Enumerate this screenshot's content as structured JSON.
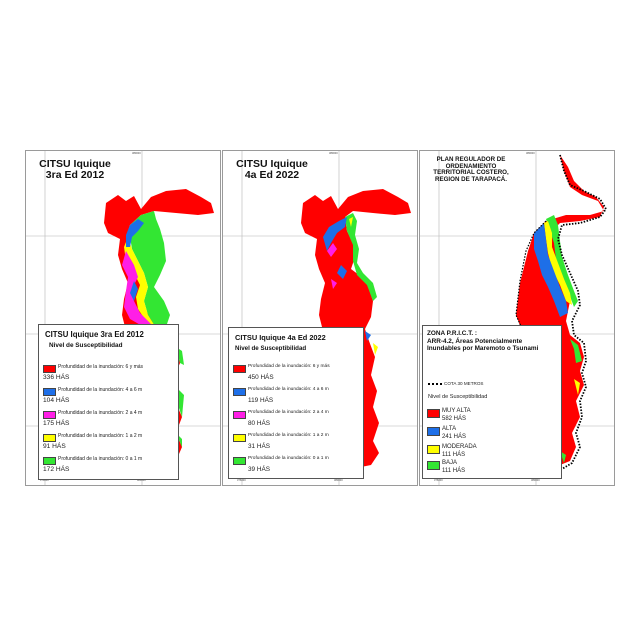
{
  "colors": {
    "red": "#ff0000",
    "blue": "#1e6fe8",
    "magenta": "#ff1ee6",
    "yellow": "#ffff00",
    "green": "#33e633"
  },
  "coords": {
    "x_ticks": [
      "376000",
      "380000",
      "384000"
    ],
    "y_ticks": [
      "7764000",
      "7760000",
      "7756000"
    ]
  },
  "panels": [
    {
      "title_line1": "CITSU Iquique",
      "title_line2": "3ra Ed 2012",
      "legend": {
        "title": "CITSU Iquique 3ra Ed 2012",
        "subtitle": "Nivel de Susceptibilidad",
        "items": [
          {
            "label": "Profundidad de la inundación: 6 y más",
            "value": "336 HÁS",
            "color": "#ff0000"
          },
          {
            "label": "Profundidad de la inundación: 4 a 6 m",
            "value": "104 HÁS",
            "color": "#1e6fe8"
          },
          {
            "label": "Profundidad de la inundación: 2 a 4 m",
            "value": "175 HÁS",
            "color": "#ff1ee6"
          },
          {
            "label": "Profundidad de la inundación: 1 a 2 m",
            "value": "91 HÁS",
            "color": "#ffff00"
          },
          {
            "label": "Profundidad de la inundación: 0 a 1 m",
            "value": "172 HÁS",
            "color": "#33e633"
          }
        ]
      }
    },
    {
      "title_line1": "CITSU Iquique",
      "title_line2": "4a Ed 2022",
      "legend": {
        "title": "CITSU Iquique 4a Ed 2022",
        "subtitle": "Nivel de Susceptibilidad",
        "items": [
          {
            "label": "Profundidad de la inundación: 6 y más",
            "value": "450 HÁS",
            "color": "#ff0000"
          },
          {
            "label": "Profundidad de la inundación: 4 a 6 m",
            "value": "119 HÁS",
            "color": "#1e6fe8"
          },
          {
            "label": "Profundidad de la inundación: 2 a 4 m",
            "value": "80 HÁS",
            "color": "#ff1ee6"
          },
          {
            "label": "Profundidad de la inundación: 1 a 2 m",
            "value": "31 HÁS",
            "color": "#ffff00"
          },
          {
            "label": "Profundidad de la inundación: 0 a 1 m",
            "value": "39 HÁS",
            "color": "#33e633"
          }
        ]
      }
    },
    {
      "title_line1": "PLAN REGULADOR DE",
      "title_line2": "ORDENAMIENTO",
      "title_line3": "TERRITORIAL COSTERO,",
      "title_line4": "REGION DE TARAPACÁ.",
      "legend": {
        "title_line1": "ZONA P.R.I.C.T. :",
        "title_line2": "ARR-4.2, Áreas Potencialmente",
        "title_line3": "Inundables por Maremoto o Tsunami",
        "cota_label": "COTA 30 METROS",
        "subtitle": "Nivel de Susceptibilidad",
        "items": [
          {
            "label": "MUY ALTA",
            "value": "582 HÁS",
            "color": "#ff0000"
          },
          {
            "label": "ALTA",
            "value": "241 HÁS",
            "color": "#1e6fe8"
          },
          {
            "label": "MODERADA",
            "value": "111 HÁS",
            "color": "#ffff00"
          },
          {
            "label": "BAJA",
            "value": "111 HÁS",
            "color": "#33e633"
          }
        ]
      }
    }
  ]
}
